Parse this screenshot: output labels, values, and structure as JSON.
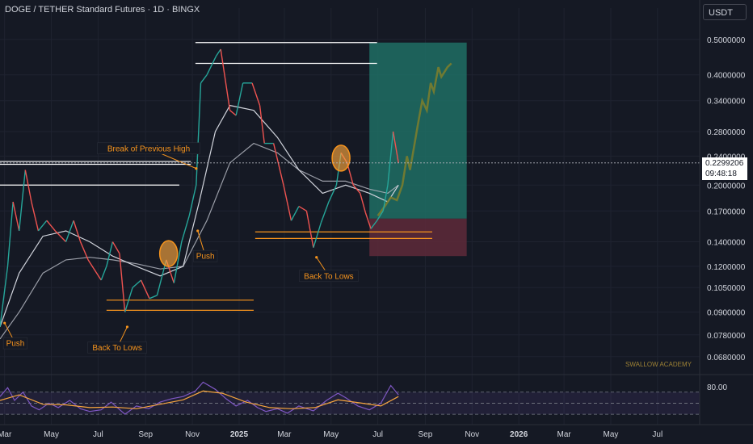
{
  "header": {
    "title": "DOGE / TETHER Standard Futures · 1D · BINGX",
    "currency": "USDT"
  },
  "price_tag": {
    "price": "0.2299206",
    "countdown": "09:48:18"
  },
  "watermark": "SWALLOW ACADEMY",
  "chart_data": {
    "type": "line",
    "title": "DOGE / TETHER Standard Futures · 1D · BINGX",
    "scale": "log",
    "ylim": [
      0.062,
      0.55
    ],
    "y_ticks": [
      {
        "value": 0.5,
        "label": "0.5000000"
      },
      {
        "value": 0.4,
        "label": "0.4000000"
      },
      {
        "value": 0.34,
        "label": "0.3400000"
      },
      {
        "value": 0.28,
        "label": "0.2800000"
      },
      {
        "value": 0.24,
        "label": "0.2400000"
      },
      {
        "value": 0.2,
        "label": "0.2000000"
      },
      {
        "value": 0.17,
        "label": "0.1700000"
      },
      {
        "value": 0.14,
        "label": "0.1400000"
      },
      {
        "value": 0.12,
        "label": "0.1200000"
      },
      {
        "value": 0.105,
        "label": "0.1050000"
      },
      {
        "value": 0.09,
        "label": "0.0900000"
      },
      {
        "value": 0.078,
        "label": "0.0780000"
      },
      {
        "value": 0.068,
        "label": "0.0680000"
      }
    ],
    "x_ticks": [
      {
        "date": "2024-03-01",
        "label": "Mar"
      },
      {
        "date": "2024-05-01",
        "label": "May"
      },
      {
        "date": "2024-07-01",
        "label": "Jul"
      },
      {
        "date": "2024-09-01",
        "label": "Sep"
      },
      {
        "date": "2024-11-01",
        "label": "Nov"
      },
      {
        "date": "2025-01-01",
        "label": "2025"
      },
      {
        "date": "2025-03-01",
        "label": "Mar"
      },
      {
        "date": "2025-05-01",
        "label": "May"
      },
      {
        "date": "2025-07-01",
        "label": "Jul"
      },
      {
        "date": "2025-09-01",
        "label": "Sep"
      },
      {
        "date": "2025-11-01",
        "label": "Nov"
      },
      {
        "date": "2026-01-01",
        "label": "2026"
      },
      {
        "date": "2026-03-01",
        "label": "Mar"
      },
      {
        "date": "2026-05-01",
        "label": "May"
      },
      {
        "date": "2026-07-01",
        "label": "Jul"
      }
    ],
    "price_series": {
      "name": "",
      "color": "#26a69a",
      "points": [
        [
          "2024-02-24",
          0.082
        ],
        [
          "2024-03-05",
          0.12
        ],
        [
          "2024-03-12",
          0.18
        ],
        [
          "2024-03-20",
          0.15
        ],
        [
          "2024-03-28",
          0.22
        ],
        [
          "2024-04-05",
          0.18
        ],
        [
          "2024-04-14",
          0.15
        ],
        [
          "2024-04-25",
          0.16
        ],
        [
          "2024-05-06",
          0.15
        ],
        [
          "2024-05-20",
          0.14
        ],
        [
          "2024-05-30",
          0.16
        ],
        [
          "2024-06-08",
          0.14
        ],
        [
          "2024-06-18",
          0.125
        ],
        [
          "2024-07-05",
          0.11
        ],
        [
          "2024-07-12",
          0.12
        ],
        [
          "2024-07-20",
          0.14
        ],
        [
          "2024-07-29",
          0.13
        ],
        [
          "2024-08-05",
          0.09
        ],
        [
          "2024-08-15",
          0.105
        ],
        [
          "2024-08-26",
          0.11
        ],
        [
          "2024-09-06",
          0.098
        ],
        [
          "2024-09-16",
          0.1
        ],
        [
          "2024-09-28",
          0.125
        ],
        [
          "2024-10-08",
          0.108
        ],
        [
          "2024-10-18",
          0.14
        ],
        [
          "2024-10-28",
          0.165
        ],
        [
          "2024-11-06",
          0.2
        ],
        [
          "2024-11-12",
          0.38
        ],
        [
          "2024-11-20",
          0.4
        ],
        [
          "2024-12-02",
          0.45
        ],
        [
          "2024-12-08",
          0.47
        ],
        [
          "2024-12-20",
          0.32
        ],
        [
          "2024-12-28",
          0.31
        ],
        [
          "2025-01-06",
          0.38
        ],
        [
          "2025-01-18",
          0.38
        ],
        [
          "2025-01-28",
          0.33
        ],
        [
          "2025-02-03",
          0.26
        ],
        [
          "2025-02-15",
          0.26
        ],
        [
          "2025-02-28",
          0.2
        ],
        [
          "2025-03-10",
          0.16
        ],
        [
          "2025-03-20",
          0.175
        ],
        [
          "2025-03-30",
          0.17
        ],
        [
          "2025-04-08",
          0.135
        ],
        [
          "2025-04-18",
          0.158
        ],
        [
          "2025-04-28",
          0.18
        ],
        [
          "2025-05-08",
          0.2
        ],
        [
          "2025-05-14",
          0.245
        ],
        [
          "2025-05-22",
          0.23
        ],
        [
          "2025-05-30",
          0.2
        ],
        [
          "2025-06-08",
          0.19
        ],
        [
          "2025-06-15",
          0.168
        ],
        [
          "2025-06-22",
          0.152
        ],
        [
          "2025-06-30",
          0.16
        ],
        [
          "2025-07-08",
          0.17
        ],
        [
          "2025-07-14",
          0.2
        ],
        [
          "2025-07-21",
          0.28
        ],
        [
          "2025-07-28",
          0.23
        ]
      ]
    },
    "projection_series": {
      "name": "",
      "color": "#7a7d2e",
      "points": [
        [
          "2025-07-01",
          0.165
        ],
        [
          "2025-07-10",
          0.175
        ],
        [
          "2025-07-18",
          0.185
        ],
        [
          "2025-07-26",
          0.182
        ],
        [
          "2025-08-02",
          0.2
        ],
        [
          "2025-08-08",
          0.24
        ],
        [
          "2025-08-12",
          0.22
        ],
        [
          "2025-08-18",
          0.26
        ],
        [
          "2025-08-22",
          0.29
        ],
        [
          "2025-08-28",
          0.34
        ],
        [
          "2025-09-03",
          0.32
        ],
        [
          "2025-09-08",
          0.38
        ],
        [
          "2025-09-12",
          0.36
        ],
        [
          "2025-09-18",
          0.42
        ],
        [
          "2025-09-22",
          0.395
        ],
        [
          "2025-09-30",
          0.42
        ],
        [
          "2025-10-05",
          0.43
        ]
      ]
    },
    "ma_fast": {
      "name": "",
      "color": "#d1d4dc",
      "points": [
        [
          "2024-02-24",
          0.082
        ],
        [
          "2024-03-20",
          0.115
        ],
        [
          "2024-04-20",
          0.145
        ],
        [
          "2024-05-20",
          0.15
        ],
        [
          "2024-06-20",
          0.14
        ],
        [
          "2024-07-20",
          0.128
        ],
        [
          "2024-08-20",
          0.12
        ],
        [
          "2024-09-20",
          0.113
        ],
        [
          "2024-10-20",
          0.12
        ],
        [
          "2024-11-10",
          0.18
        ],
        [
          "2024-12-01",
          0.28
        ],
        [
          "2024-12-20",
          0.33
        ],
        [
          "2025-01-20",
          0.32
        ],
        [
          "2025-02-20",
          0.27
        ],
        [
          "2025-03-20",
          0.22
        ],
        [
          "2025-04-20",
          0.19
        ],
        [
          "2025-05-20",
          0.2
        ],
        [
          "2025-06-20",
          0.19
        ],
        [
          "2025-07-14",
          0.18
        ],
        [
          "2025-07-28",
          0.2
        ]
      ]
    },
    "ma_slow": {
      "name": "",
      "color": "#b2b5be",
      "points": [
        [
          "2024-02-24",
          0.076
        ],
        [
          "2024-03-20",
          0.09
        ],
        [
          "2024-04-20",
          0.115
        ],
        [
          "2024-05-20",
          0.125
        ],
        [
          "2024-06-20",
          0.127
        ],
        [
          "2024-07-20",
          0.125
        ],
        [
          "2024-08-20",
          0.122
        ],
        [
          "2024-09-20",
          0.118
        ],
        [
          "2024-10-20",
          0.12
        ],
        [
          "2024-11-20",
          0.16
        ],
        [
          "2024-12-20",
          0.23
        ],
        [
          "2025-01-20",
          0.26
        ],
        [
          "2025-02-20",
          0.245
        ],
        [
          "2025-03-20",
          0.22
        ],
        [
          "2025-04-20",
          0.205
        ],
        [
          "2025-05-20",
          0.205
        ],
        [
          "2025-06-20",
          0.195
        ],
        [
          "2025-07-14",
          0.19
        ],
        [
          "2025-07-28",
          0.2
        ]
      ]
    },
    "horizontal_levels": [
      {
        "from": "2024-02-24",
        "to": "2024-10-30",
        "value": 0.232,
        "color": "#ffffff"
      },
      {
        "from": "2024-02-24",
        "to": "2024-10-30",
        "value": 0.228,
        "color": "#ffffff"
      },
      {
        "from": "2024-02-24",
        "to": "2024-10-15",
        "value": 0.2,
        "color": "#ffffff"
      },
      {
        "from": "2024-11-05",
        "to": "2025-06-30",
        "value": 0.49,
        "color": "#ffffff"
      },
      {
        "from": "2024-11-05",
        "to": "2025-06-30",
        "value": 0.43,
        "color": "#ffffff"
      },
      {
        "from": "2024-07-12",
        "to": "2025-01-20",
        "value": 0.097,
        "color": "#f7941d"
      },
      {
        "from": "2024-07-12",
        "to": "2025-01-20",
        "value": 0.091,
        "color": "#f7941d"
      },
      {
        "from": "2025-01-22",
        "to": "2025-09-10",
        "value": 0.149,
        "color": "#f7941d"
      },
      {
        "from": "2025-01-22",
        "to": "2025-09-10",
        "value": 0.143,
        "color": "#f7941d"
      }
    ],
    "position": {
      "from": "2025-06-20",
      "to": "2025-10-25",
      "entry": 0.162,
      "target": 0.49,
      "stop": 0.128,
      "profit_color": "#1f6f64",
      "loss_color": "#5e2a3a"
    },
    "highlight_circles": [
      {
        "date": "2024-10-01",
        "value": 0.13
      },
      {
        "date": "2025-05-14",
        "value": 0.237
      }
    ],
    "annotations": [
      {
        "text": "Break of Previous High",
        "date": "2024-09-05",
        "value": 0.252,
        "arrow_to": {
          "date": "2024-11-06",
          "value": 0.222
        }
      },
      {
        "text": "Push",
        "date": "2024-11-18",
        "value": 0.128,
        "arrow_to": {
          "date": "2024-11-08",
          "value": 0.15
        }
      },
      {
        "text": "Back To Lows",
        "date": "2025-04-28",
        "value": 0.113,
        "arrow_to": {
          "date": "2025-04-12",
          "value": 0.127
        }
      },
      {
        "text": "Push",
        "date": "2024-03-15",
        "value": 0.074,
        "arrow_to": {
          "date": "2024-03-01",
          "value": 0.084
        }
      },
      {
        "text": "Back To Lows",
        "date": "2024-07-26",
        "value": 0.072,
        "arrow_to": {
          "date": "2024-08-08",
          "value": 0.082
        }
      }
    ],
    "indicator": {
      "label": "80.00",
      "ylim": [
        20,
        90
      ],
      "upper": 70,
      "lower": 30,
      "rsi": [
        [
          "2024-02-24",
          62
        ],
        [
          "2024-03-05",
          78
        ],
        [
          "2024-03-14",
          55
        ],
        [
          "2024-03-25",
          70
        ],
        [
          "2024-04-05",
          45
        ],
        [
          "2024-04-15",
          38
        ],
        [
          "2024-04-28",
          50
        ],
        [
          "2024-05-10",
          42
        ],
        [
          "2024-05-25",
          55
        ],
        [
          "2024-06-08",
          40
        ],
        [
          "2024-06-20",
          35
        ],
        [
          "2024-07-05",
          38
        ],
        [
          "2024-07-18",
          52
        ],
        [
          "2024-08-05",
          30
        ],
        [
          "2024-08-20",
          45
        ],
        [
          "2024-09-05",
          40
        ],
        [
          "2024-09-20",
          52
        ],
        [
          "2024-10-05",
          58
        ],
        [
          "2024-10-20",
          62
        ],
        [
          "2024-11-05",
          72
        ],
        [
          "2024-11-15",
          88
        ],
        [
          "2024-12-01",
          75
        ],
        [
          "2024-12-15",
          58
        ],
        [
          "2024-12-28",
          45
        ],
        [
          "2025-01-12",
          55
        ],
        [
          "2025-01-25",
          42
        ],
        [
          "2025-02-05",
          35
        ],
        [
          "2025-02-20",
          40
        ],
        [
          "2025-03-05",
          32
        ],
        [
          "2025-03-20",
          45
        ],
        [
          "2025-04-08",
          36
        ],
        [
          "2025-04-25",
          55
        ],
        [
          "2025-05-10",
          68
        ],
        [
          "2025-05-20",
          60
        ],
        [
          "2025-06-05",
          45
        ],
        [
          "2025-06-20",
          38
        ],
        [
          "2025-07-05",
          50
        ],
        [
          "2025-07-18",
          82
        ],
        [
          "2025-07-28",
          65
        ]
      ],
      "rsi_ma": [
        [
          "2024-02-24",
          55
        ],
        [
          "2024-03-20",
          65
        ],
        [
          "2024-04-20",
          48
        ],
        [
          "2024-05-20",
          47
        ],
        [
          "2024-06-20",
          42
        ],
        [
          "2024-07-20",
          43
        ],
        [
          "2024-08-20",
          40
        ],
        [
          "2024-09-20",
          48
        ],
        [
          "2024-10-20",
          56
        ],
        [
          "2024-11-15",
          72
        ],
        [
          "2024-12-10",
          68
        ],
        [
          "2025-01-10",
          52
        ],
        [
          "2025-02-10",
          42
        ],
        [
          "2025-03-10",
          40
        ],
        [
          "2025-04-10",
          42
        ],
        [
          "2025-05-10",
          56
        ],
        [
          "2025-06-10",
          50
        ],
        [
          "2025-07-05",
          45
        ],
        [
          "2025-07-28",
          62
        ]
      ]
    }
  }
}
